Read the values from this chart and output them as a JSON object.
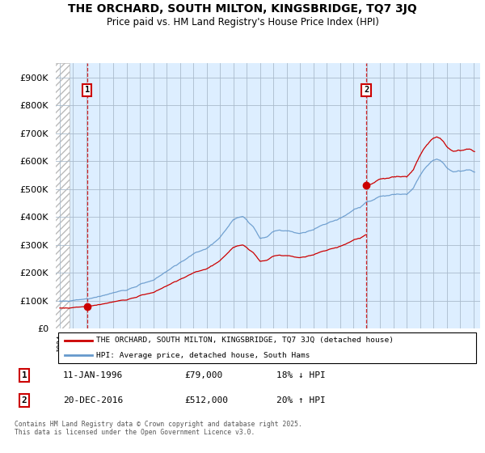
{
  "title1": "THE ORCHARD, SOUTH MILTON, KINGSBRIDGE, TQ7 3JQ",
  "title2": "Price paid vs. HM Land Registry's House Price Index (HPI)",
  "legend_line1": "THE ORCHARD, SOUTH MILTON, KINGSBRIDGE, TQ7 3JQ (detached house)",
  "legend_line2": "HPI: Average price, detached house, South Hams",
  "footnote": "Contains HM Land Registry data © Crown copyright and database right 2025.\nThis data is licensed under the Open Government Licence v3.0.",
  "point1_date": "11-JAN-1996",
  "point1_price": "£79,000",
  "point1_hpi": "18% ↓ HPI",
  "point2_date": "20-DEC-2016",
  "point2_price": "£512,000",
  "point2_hpi": "20% ↑ HPI",
  "red_color": "#cc0000",
  "blue_color": "#6699cc",
  "bg_color": "#ddeeff",
  "grid_color": "#aabbcc",
  "ylim_max": 950000,
  "sale1_year": 1996.04,
  "sale1_price": 79000,
  "sale2_year": 2016.96,
  "sale2_price": 512000
}
